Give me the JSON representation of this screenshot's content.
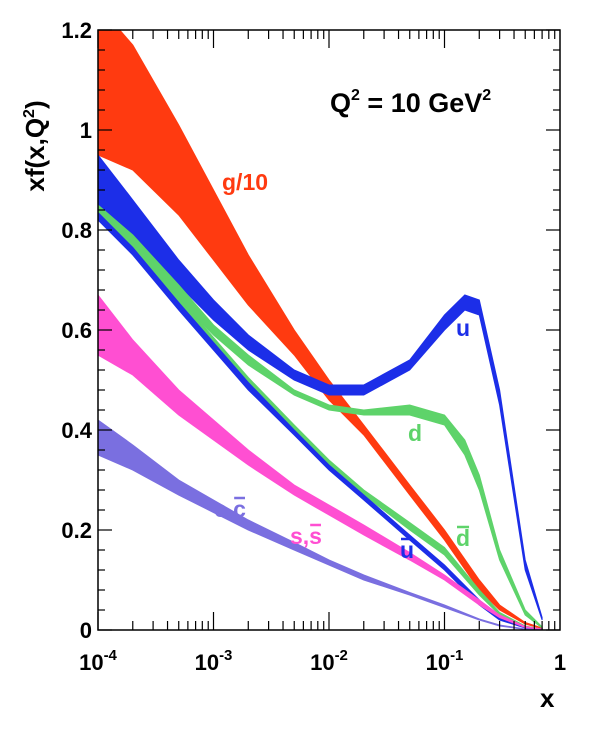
{
  "chart_data": {
    "type": "line",
    "title": "",
    "xscale": "log",
    "xlim": [
      0.0001,
      1
    ],
    "ylim": [
      0,
      1.2
    ],
    "x_tick_labels": [
      {
        "value": 0.0001,
        "base": "10",
        "exp": "-4"
      },
      {
        "value": 0.001,
        "base": "10",
        "exp": "-3"
      },
      {
        "value": 0.01,
        "base": "10",
        "exp": "-2"
      },
      {
        "value": 0.1,
        "base": "10",
        "exp": "-1"
      },
      {
        "value": 1,
        "base": "1",
        "exp": ""
      }
    ],
    "y_ticks": [
      0,
      0.2,
      0.4,
      0.6,
      0.8,
      1,
      1.2
    ],
    "y_tick_labels": [
      "0",
      "0.2",
      "0.4",
      "0.6",
      "0.8",
      "1",
      "1.2"
    ],
    "xlabel": "x",
    "ylabel": {
      "main": "xf(x,Q",
      "sup": "2",
      "end": ")"
    },
    "annotation": {
      "main": "Q",
      "sup1": "2",
      "middle": " = 10 GeV",
      "sup2": "2"
    },
    "series": [
      {
        "name": "g/10",
        "label": "g/10",
        "color": "#ff3a10",
        "x": [
          0.0001,
          0.0002,
          0.0005,
          0.001,
          0.002,
          0.005,
          0.01,
          0.02,
          0.05,
          0.1,
          0.2,
          0.3,
          0.5,
          0.7
        ],
        "low": [
          0.95,
          0.92,
          0.83,
          0.74,
          0.65,
          0.55,
          0.46,
          0.39,
          0.27,
          0.18,
          0.08,
          0.04,
          0.012,
          0.003
        ],
        "high": [
          1.25,
          1.17,
          1.01,
          0.88,
          0.75,
          0.6,
          0.5,
          0.41,
          0.29,
          0.2,
          0.1,
          0.05,
          0.015,
          0.004
        ]
      },
      {
        "name": "u",
        "label": "u",
        "color": "#1c2ee8",
        "x": [
          0.0001,
          0.0002,
          0.0005,
          0.001,
          0.002,
          0.005,
          0.01,
          0.02,
          0.05,
          0.1,
          0.15,
          0.2,
          0.3,
          0.5,
          0.7
        ],
        "low": [
          0.83,
          0.78,
          0.69,
          0.62,
          0.56,
          0.5,
          0.47,
          0.47,
          0.52,
          0.6,
          0.64,
          0.63,
          0.45,
          0.12,
          0.02
        ],
        "high": [
          0.95,
          0.86,
          0.74,
          0.66,
          0.59,
          0.52,
          0.49,
          0.49,
          0.54,
          0.63,
          0.67,
          0.66,
          0.48,
          0.14,
          0.025
        ]
      },
      {
        "name": "d",
        "label": "d",
        "color": "#5ed36a",
        "x": [
          0.0001,
          0.0002,
          0.0005,
          0.001,
          0.002,
          0.005,
          0.01,
          0.02,
          0.05,
          0.1,
          0.15,
          0.2,
          0.3,
          0.5,
          0.7
        ],
        "low": [
          0.82,
          0.76,
          0.66,
          0.59,
          0.53,
          0.47,
          0.44,
          0.43,
          0.43,
          0.41,
          0.35,
          0.28,
          0.14,
          0.03,
          0.004
        ],
        "high": [
          0.85,
          0.79,
          0.69,
          0.61,
          0.55,
          0.48,
          0.45,
          0.44,
          0.45,
          0.43,
          0.38,
          0.31,
          0.16,
          0.04,
          0.006
        ]
      },
      {
        "name": "d-bar",
        "label": "d",
        "bar": true,
        "color": "#5ed36a",
        "x": [
          0.0001,
          0.0002,
          0.0005,
          0.001,
          0.002,
          0.005,
          0.01,
          0.02,
          0.05,
          0.1,
          0.2,
          0.3,
          0.5,
          0.7
        ],
        "low": [
          0.83,
          0.76,
          0.65,
          0.57,
          0.49,
          0.4,
          0.33,
          0.27,
          0.2,
          0.15,
          0.07,
          0.03,
          0.006,
          0.001
        ],
        "high": [
          0.845,
          0.775,
          0.665,
          0.585,
          0.505,
          0.41,
          0.34,
          0.28,
          0.215,
          0.165,
          0.08,
          0.035,
          0.008,
          0.002
        ]
      },
      {
        "name": "u-bar",
        "label": "u",
        "bar": true,
        "color": "#1c2ee8",
        "x": [
          0.0001,
          0.0002,
          0.0005,
          0.001,
          0.002,
          0.005,
          0.01,
          0.02,
          0.05,
          0.1,
          0.2,
          0.3,
          0.5,
          0.7
        ],
        "low": [
          0.82,
          0.75,
          0.64,
          0.56,
          0.48,
          0.39,
          0.32,
          0.26,
          0.18,
          0.12,
          0.05,
          0.02,
          0.004,
          0.001
        ],
        "high": [
          0.835,
          0.765,
          0.655,
          0.575,
          0.495,
          0.4,
          0.33,
          0.27,
          0.19,
          0.13,
          0.06,
          0.025,
          0.005,
          0.002
        ]
      },
      {
        "name": "s, s-bar",
        "label": "s,s",
        "color": "#ff4fd2",
        "x": [
          0.0001,
          0.0002,
          0.0005,
          0.001,
          0.002,
          0.005,
          0.01,
          0.02,
          0.05,
          0.1,
          0.2,
          0.3,
          0.5,
          0.7
        ],
        "low": [
          0.55,
          0.51,
          0.43,
          0.38,
          0.33,
          0.27,
          0.23,
          0.19,
          0.14,
          0.1,
          0.05,
          0.025,
          0.005,
          0.001
        ],
        "high": [
          0.67,
          0.58,
          0.48,
          0.42,
          0.36,
          0.29,
          0.25,
          0.21,
          0.155,
          0.11,
          0.06,
          0.03,
          0.007,
          0.002
        ]
      },
      {
        "name": "c, c-bar",
        "label": "c,c",
        "color": "#7a6fe0",
        "x": [
          0.0001,
          0.0002,
          0.0005,
          0.001,
          0.002,
          0.005,
          0.01,
          0.02,
          0.05,
          0.1,
          0.2,
          0.3,
          0.5,
          0.7
        ],
        "low": [
          0.35,
          0.32,
          0.27,
          0.235,
          0.2,
          0.16,
          0.13,
          0.1,
          0.07,
          0.045,
          0.02,
          0.008,
          0.001,
          0.0
        ],
        "high": [
          0.42,
          0.37,
          0.3,
          0.26,
          0.22,
          0.175,
          0.14,
          0.11,
          0.075,
          0.05,
          0.022,
          0.01,
          0.002,
          0.0
        ]
      }
    ]
  }
}
